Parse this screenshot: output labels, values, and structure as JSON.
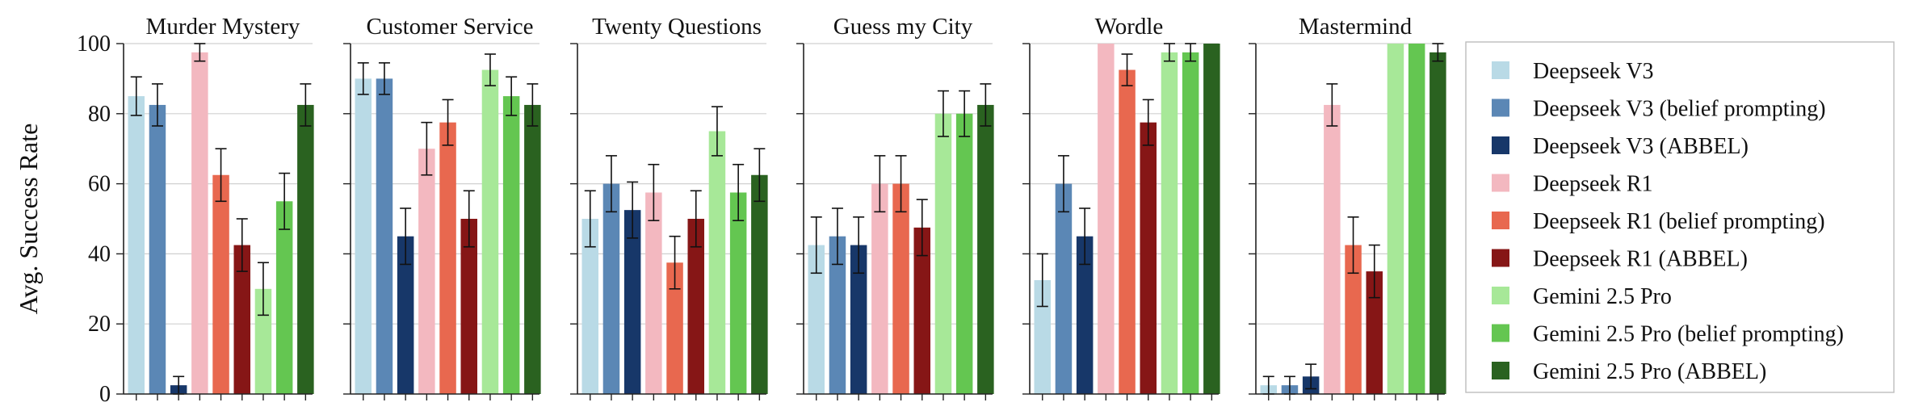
{
  "chart_data": {
    "type": "bar",
    "ylabel": "Avg. Success Rate",
    "ylim": [
      0,
      100
    ],
    "yticks": [
      0,
      20,
      40,
      60,
      80,
      100
    ],
    "grid": "horizontal",
    "legend_placement": "right",
    "series": [
      {
        "name": "Deepseek V3",
        "color": "#b9dae6"
      },
      {
        "name": "Deepseek V3 (belief prompting)",
        "color": "#5b87b5"
      },
      {
        "name": "Deepseek V3 (ABBEL)",
        "color": "#173769"
      },
      {
        "name": "Deepseek R1",
        "color": "#f3b8c0"
      },
      {
        "name": "Deepseek R1 (belief prompting)",
        "color": "#e8684f"
      },
      {
        "name": "Deepseek R1 (ABBEL)",
        "color": "#861616"
      },
      {
        "name": "Gemini 2.5 Pro",
        "color": "#a7e898"
      },
      {
        "name": "Gemini 2.5 Pro (belief prompting)",
        "color": "#64c651"
      },
      {
        "name": "Gemini 2.5 Pro (ABBEL)",
        "color": "#2a6220"
      }
    ],
    "panels": [
      {
        "title": "Murder Mystery",
        "values": [
          85,
          82.5,
          2.5,
          97.5,
          62.5,
          42.5,
          30,
          55,
          82.5
        ],
        "errors": [
          5.5,
          6,
          2.5,
          2.5,
          7.5,
          7.5,
          7.5,
          8,
          6
        ]
      },
      {
        "title": "Customer Service",
        "values": [
          90,
          90,
          45,
          70,
          77.5,
          50,
          92.5,
          85,
          82.5
        ],
        "errors": [
          4.5,
          4.5,
          8,
          7.5,
          6.5,
          8,
          4.5,
          5.5,
          6
        ]
      },
      {
        "title": "Twenty Questions",
        "values": [
          50,
          60,
          52.5,
          57.5,
          37.5,
          50,
          75,
          57.5,
          62.5
        ],
        "errors": [
          8,
          8,
          8,
          8,
          7.5,
          8,
          7,
          8,
          7.5
        ]
      },
      {
        "title": "Guess my City",
        "values": [
          42.5,
          45,
          42.5,
          60,
          60,
          47.5,
          80,
          80,
          82.5
        ],
        "errors": [
          8,
          8,
          8,
          8,
          8,
          8,
          6.5,
          6.5,
          6
        ]
      },
      {
        "title": "Wordle",
        "values": [
          32.5,
          60,
          45,
          100,
          92.5,
          77.5,
          97.5,
          97.5,
          100
        ],
        "errors": [
          7.5,
          8,
          8,
          0,
          4.5,
          6.5,
          2.5,
          2.5,
          0
        ]
      },
      {
        "title": "Mastermind",
        "values": [
          2.5,
          2.5,
          5,
          82.5,
          42.5,
          35,
          100,
          100,
          97.5
        ],
        "errors": [
          2.5,
          2.5,
          3.5,
          6,
          8,
          7.5,
          0,
          0,
          2.5
        ]
      }
    ]
  }
}
